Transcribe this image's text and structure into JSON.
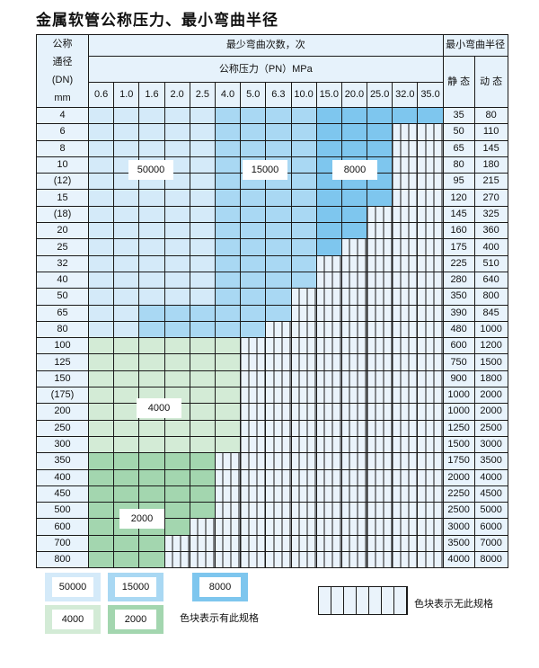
{
  "title": "金属软管公称压力、最小弯曲半径",
  "header": {
    "dn_label": [
      "公称",
      "通径",
      "(DN)",
      "mm"
    ],
    "cycles_label": "最少弯曲次数，次",
    "pressure_label": "公称压力（PN）MPa",
    "radius_label": "最小弯曲半径",
    "static_label": "静 态",
    "dynamic_label": "动 态",
    "pressures": [
      "0.6",
      "1.0",
      "1.6",
      "2.0",
      "2.5",
      "4.0",
      "5.0",
      "6.3",
      "10.0",
      "15.0",
      "20.0",
      "25.0",
      "32.0",
      "35.0"
    ]
  },
  "ratings": {
    "A": "50000",
    "B": "15000",
    "C": "8000",
    "D": "4000",
    "E": "2000"
  },
  "colors": {
    "A": "#d4eaf9",
    "B": "#a9d8f3",
    "C": "#7ec6ee",
    "D": "#d3ebd6",
    "E": "#a3d6af",
    "unavailable": "#eaf3fb"
  },
  "rows": [
    {
      "dn": "4",
      "zones": "AAAAABBBBCCCCC",
      "static": "35",
      "dynamic": "80"
    },
    {
      "dn": "6",
      "zones": "AAAAABBBBCCC",
      "static": "50",
      "dynamic": "110"
    },
    {
      "dn": "8",
      "zones": "AAAAABBBBCCC",
      "static": "65",
      "dynamic": "145"
    },
    {
      "dn": "10",
      "zones": "AAAAABBBBCCC",
      "static": "80",
      "dynamic": "180"
    },
    {
      "dn": "(12)",
      "zones": "AAAAABBBBCCC",
      "static": "95",
      "dynamic": "215"
    },
    {
      "dn": "15",
      "zones": "AAAAABBBBCCC",
      "static": "120",
      "dynamic": "270"
    },
    {
      "dn": "(18)",
      "zones": "AAAAABBBBCC",
      "static": "145",
      "dynamic": "325"
    },
    {
      "dn": "20",
      "zones": "AAAAABBBBCC",
      "static": "160",
      "dynamic": "360"
    },
    {
      "dn": "25",
      "zones": "AAAAABBBBC",
      "static": "175",
      "dynamic": "400"
    },
    {
      "dn": "32",
      "zones": "AAAAABBBB",
      "static": "225",
      "dynamic": "510"
    },
    {
      "dn": "40",
      "zones": "AAAAABBBB",
      "static": "280",
      "dynamic": "640"
    },
    {
      "dn": "50",
      "zones": "AAAAABBB",
      "static": "350",
      "dynamic": "800"
    },
    {
      "dn": "65",
      "zones": "AABBBBBB",
      "static": "390",
      "dynamic": "845"
    },
    {
      "dn": "80",
      "zones": "AABBBBB",
      "static": "480",
      "dynamic": "1000"
    },
    {
      "dn": "100",
      "zones": "DDDDDD",
      "static": "600",
      "dynamic": "1200"
    },
    {
      "dn": "125",
      "zones": "DDDDDD",
      "static": "750",
      "dynamic": "1500"
    },
    {
      "dn": "150",
      "zones": "DDDDDD",
      "static": "900",
      "dynamic": "1800"
    },
    {
      "dn": "(175)",
      "zones": "DDDDDD",
      "static": "1000",
      "dynamic": "2000"
    },
    {
      "dn": "200",
      "zones": "DDDDDD",
      "static": "1000",
      "dynamic": "2000"
    },
    {
      "dn": "250",
      "zones": "DDDDDD",
      "static": "1250",
      "dynamic": "2500"
    },
    {
      "dn": "300",
      "zones": "DDDDDD",
      "static": "1500",
      "dynamic": "3000"
    },
    {
      "dn": "350",
      "zones": "EEEEE",
      "static": "1750",
      "dynamic": "3500"
    },
    {
      "dn": "400",
      "zones": "EEEEE",
      "static": "2000",
      "dynamic": "4000"
    },
    {
      "dn": "450",
      "zones": "EEEEE",
      "static": "2250",
      "dynamic": "4500"
    },
    {
      "dn": "500",
      "zones": "EEEEE",
      "static": "2500",
      "dynamic": "5000"
    },
    {
      "dn": "600",
      "zones": "EEEE",
      "static": "3000",
      "dynamic": "6000"
    },
    {
      "dn": "700",
      "zones": "EEE",
      "static": "3500",
      "dynamic": "7000"
    },
    {
      "dn": "800",
      "zones": "EEE",
      "static": "4000",
      "dynamic": "8000"
    }
  ],
  "legend": {
    "available_text": "色块表示有此规格",
    "unavailable_text": "色块表示无此规格"
  }
}
